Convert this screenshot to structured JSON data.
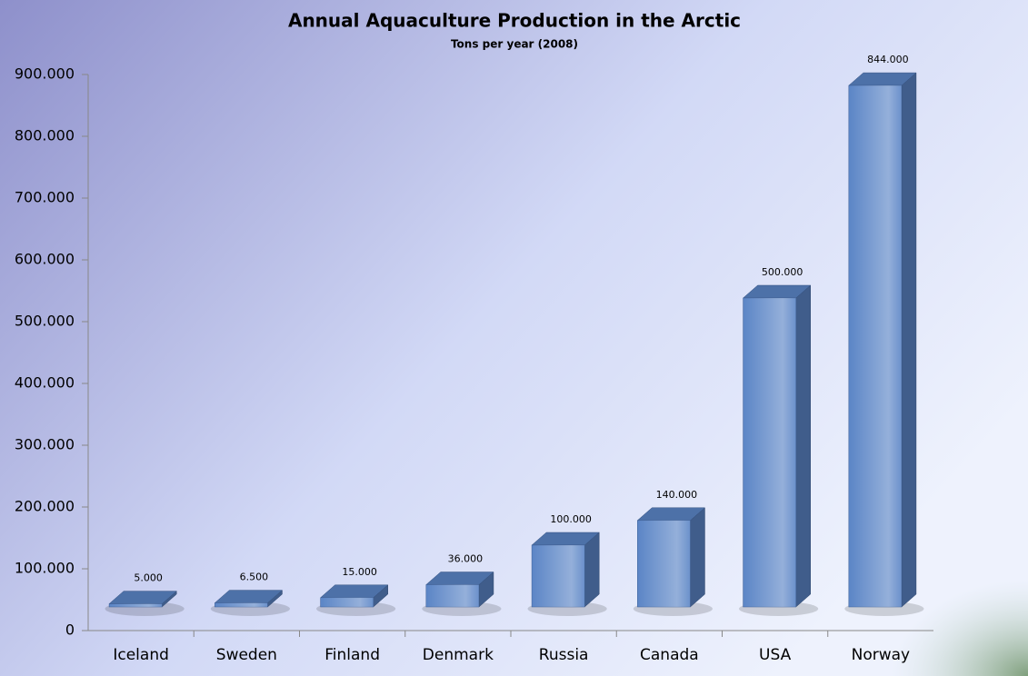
{
  "chart_data": {
    "type": "bar",
    "title": "Annual Aquaculture Production in the Arctic",
    "subtitle": "Tons per year (2008)",
    "categories": [
      "Iceland",
      "Sweden",
      "Finland",
      "Denmark",
      "Russia",
      "Canada",
      "USA",
      "Norway"
    ],
    "values": [
      5000,
      6500,
      15000,
      36000,
      100000,
      140000,
      500000,
      844000
    ],
    "value_labels": [
      "5.000",
      "6.500",
      "15.000",
      "36.000",
      "100.000",
      "140.000",
      "500.000",
      "844.000"
    ],
    "color": "#5b85c6",
    "ylim": [
      0,
      900000
    ],
    "yticks": [
      0,
      {
        "value": 100000,
        "label": "100.000"
      },
      {
        "value": 200000,
        "label": "200.000"
      },
      {
        "value": 300000,
        "label": "300.000"
      },
      {
        "value": 400000,
        "label": "400.000"
      },
      {
        "value": 500000,
        "label": "500.000"
      },
      {
        "value": 600000,
        "label": "600.000"
      },
      {
        "value": 700000,
        "label": "700.000"
      },
      {
        "value": 800000,
        "label": "800.000"
      },
      {
        "value": 900000,
        "label": "900.000"
      }
    ],
    "grid": false
  }
}
